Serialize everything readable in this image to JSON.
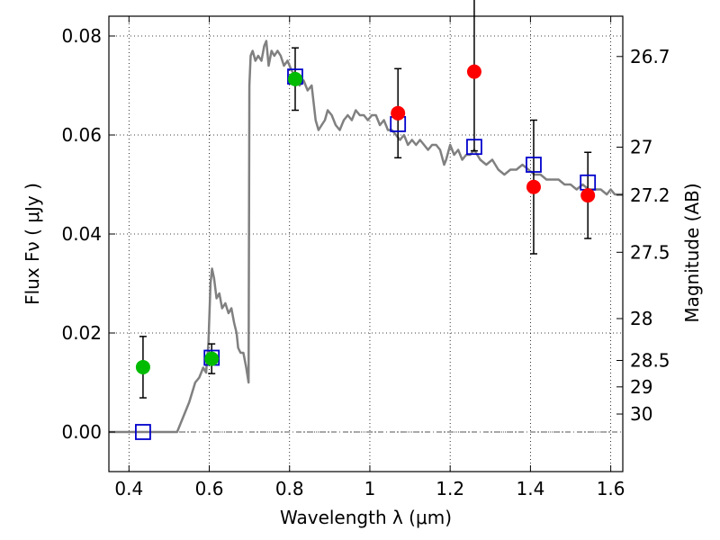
{
  "chart_data": {
    "type": "scatter",
    "xlabel": "Wavelength  λ (μm)",
    "ylabel": "Flux  Fν  ( μJy )",
    "ylabel_right": "Magnitude (AB)",
    "xlim": [
      0.35,
      1.63
    ],
    "ylim": [
      -0.008,
      0.084
    ],
    "grid": true,
    "x_ticks": [
      {
        "value": 0.4,
        "label": "0.4"
      },
      {
        "value": 0.6,
        "label": "0.6"
      },
      {
        "value": 0.8,
        "label": "0.8"
      },
      {
        "value": 1.0,
        "label": "1"
      },
      {
        "value": 1.2,
        "label": "1.2"
      },
      {
        "value": 1.4,
        "label": "1.4"
      },
      {
        "value": 1.6,
        "label": "1.6"
      }
    ],
    "y_ticks": [
      {
        "value": 0.0,
        "label": "0.00"
      },
      {
        "value": 0.02,
        "label": "0.02"
      },
      {
        "value": 0.04,
        "label": "0.04"
      },
      {
        "value": 0.06,
        "label": "0.06"
      },
      {
        "value": 0.08,
        "label": "0.08"
      }
    ],
    "mag_ticks": [
      {
        "value": 26.7,
        "label": "26.7"
      },
      {
        "value": 27,
        "label": "27"
      },
      {
        "value": 27.2,
        "label": "27.2"
      },
      {
        "value": 27.5,
        "label": "27.5"
      },
      {
        "value": 28,
        "label": "28"
      },
      {
        "value": 28.5,
        "label": "28.5"
      },
      {
        "value": 29,
        "label": "29"
      },
      {
        "value": 30,
        "label": "30"
      }
    ],
    "template_spectrum": {
      "color": "#808080",
      "x": [
        0.35,
        0.52,
        0.535,
        0.55,
        0.565,
        0.575,
        0.585,
        0.592,
        0.598,
        0.603,
        0.607,
        0.612,
        0.618,
        0.625,
        0.632,
        0.64,
        0.648,
        0.655,
        0.662,
        0.668,
        0.672,
        0.678,
        0.685,
        0.692,
        0.698,
        0.7,
        0.703,
        0.708,
        0.715,
        0.722,
        0.73,
        0.737,
        0.742,
        0.748,
        0.755,
        0.762,
        0.77,
        0.778,
        0.786,
        0.795,
        0.805,
        0.815,
        0.825,
        0.835,
        0.845,
        0.855,
        0.865,
        0.872,
        0.88,
        0.888,
        0.895,
        0.905,
        0.915,
        0.925,
        0.935,
        0.945,
        0.955,
        0.965,
        0.975,
        0.985,
        0.995,
        1.005,
        1.015,
        1.025,
        1.035,
        1.045,
        1.055,
        1.065,
        1.075,
        1.085,
        1.095,
        1.105,
        1.115,
        1.125,
        1.135,
        1.145,
        1.155,
        1.165,
        1.175,
        1.185,
        1.19,
        1.2,
        1.21,
        1.22,
        1.23,
        1.24,
        1.25,
        1.26,
        1.275,
        1.29,
        1.305,
        1.32,
        1.335,
        1.35,
        1.365,
        1.38,
        1.395,
        1.41,
        1.425,
        1.44,
        1.455,
        1.47,
        1.485,
        1.5,
        1.515,
        1.53,
        1.545,
        1.56,
        1.575,
        1.59,
        1.6,
        1.61,
        1.63
      ],
      "y": [
        0.0,
        0.0,
        0.003,
        0.006,
        0.01,
        0.011,
        0.013,
        0.012,
        0.018,
        0.03,
        0.033,
        0.031,
        0.027,
        0.028,
        0.025,
        0.026,
        0.024,
        0.025,
        0.022,
        0.02,
        0.017,
        0.016,
        0.016,
        0.013,
        0.01,
        0.07,
        0.076,
        0.077,
        0.075,
        0.076,
        0.075,
        0.078,
        0.079,
        0.074,
        0.077,
        0.076,
        0.077,
        0.076,
        0.074,
        0.075,
        0.073,
        0.072,
        0.07,
        0.071,
        0.069,
        0.07,
        0.063,
        0.061,
        0.062,
        0.063,
        0.065,
        0.064,
        0.062,
        0.061,
        0.063,
        0.064,
        0.063,
        0.065,
        0.064,
        0.064,
        0.063,
        0.064,
        0.064,
        0.062,
        0.063,
        0.061,
        0.061,
        0.06,
        0.059,
        0.06,
        0.058,
        0.059,
        0.058,
        0.059,
        0.058,
        0.057,
        0.058,
        0.058,
        0.057,
        0.054,
        0.055,
        0.058,
        0.056,
        0.057,
        0.055,
        0.056,
        0.056,
        0.057,
        0.055,
        0.054,
        0.055,
        0.053,
        0.052,
        0.053,
        0.053,
        0.054,
        0.053,
        0.052,
        0.052,
        0.051,
        0.051,
        0.051,
        0.05,
        0.05,
        0.049,
        0.05,
        0.049,
        0.049,
        0.049,
        0.048,
        0.049,
        0.048,
        0.048
      ]
    },
    "model_points": {
      "color": "#0000cc",
      "marker": "open-square",
      "points": [
        {
          "x": 0.435,
          "y": 0.0
        },
        {
          "x": 0.606,
          "y": 0.015
        },
        {
          "x": 0.814,
          "y": 0.0718
        },
        {
          "x": 1.07,
          "y": 0.0622
        },
        {
          "x": 1.26,
          "y": 0.0576
        },
        {
          "x": 1.408,
          "y": 0.054
        },
        {
          "x": 1.543,
          "y": 0.0504
        }
      ]
    },
    "observed_green": {
      "color": "#00bb00",
      "marker": "filled-circle",
      "points": [
        {
          "x": 0.435,
          "y": 0.0131,
          "yerr": 0.0062
        },
        {
          "x": 0.606,
          "y": 0.0148,
          "yerr": 0.003
        },
        {
          "x": 0.814,
          "y": 0.0713,
          "yerr": 0.0063
        }
      ]
    },
    "observed_red": {
      "color": "#ff0000",
      "marker": "filled-circle",
      "points": [
        {
          "x": 1.07,
          "y": 0.0644,
          "yerr": 0.009
        },
        {
          "x": 1.26,
          "y": 0.0728,
          "yerr": 0.016
        },
        {
          "x": 1.408,
          "y": 0.0495,
          "yerr": 0.0135
        },
        {
          "x": 1.543,
          "y": 0.0478,
          "yerr": 0.0087
        }
      ]
    }
  }
}
